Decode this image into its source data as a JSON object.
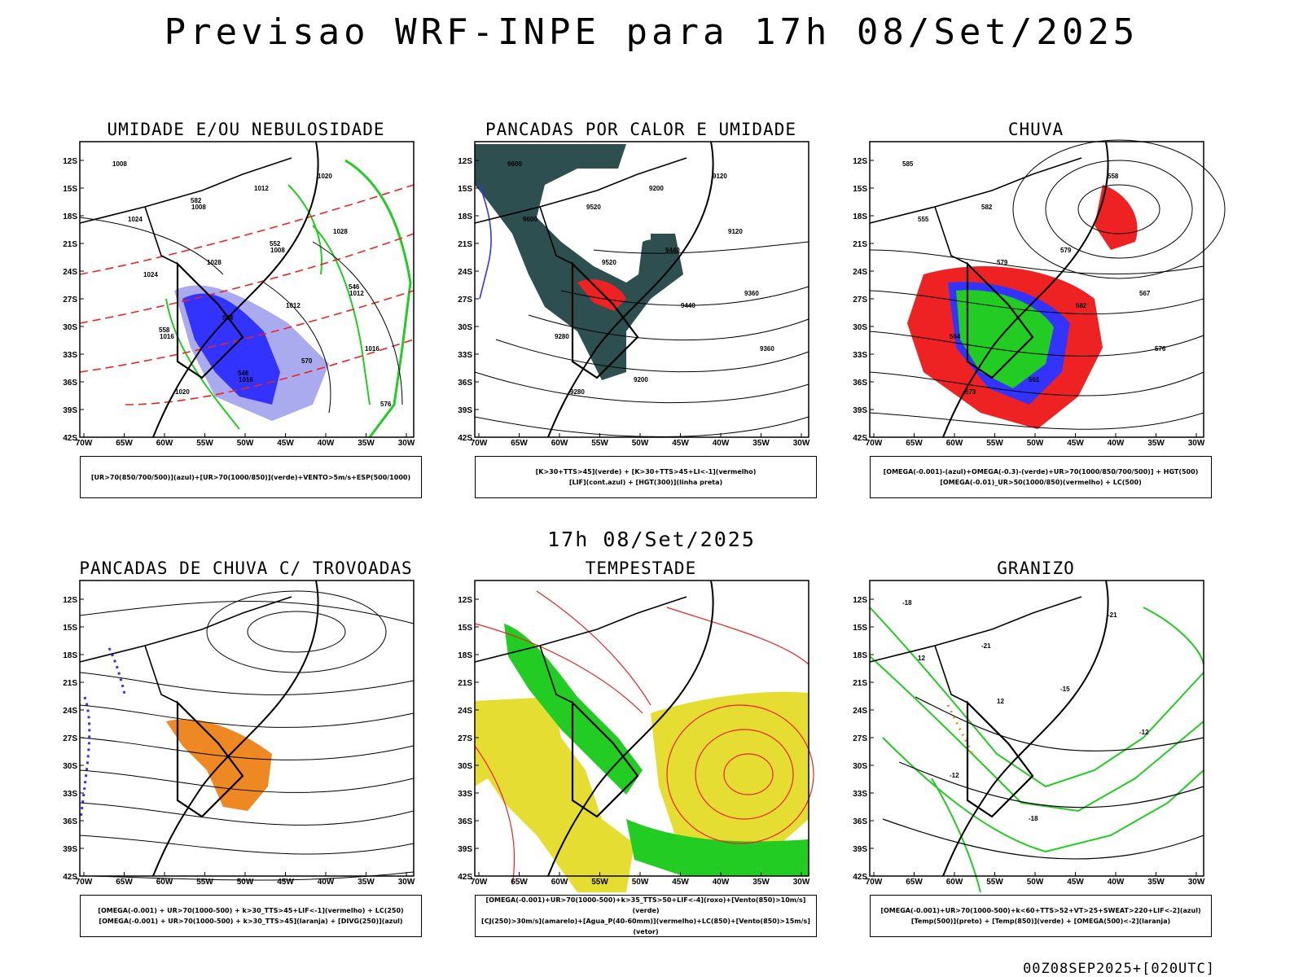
{
  "header": {
    "title": "Previsao WRF-INPE  para 17h 08/Set/2025"
  },
  "middle": {
    "title": "17h 08/Set/2025"
  },
  "footer": {
    "run": "00Z08SEP2025+[020UTC]"
  },
  "axes": {
    "xlabels": [
      "70W",
      "65W",
      "60W",
      "55W",
      "50W",
      "45W",
      "40W",
      "35W",
      "30W"
    ],
    "ylabels": [
      "12S",
      "15S",
      "18S",
      "21S",
      "24S",
      "27S",
      "30S",
      "33S",
      "36S",
      "39S",
      "42S"
    ]
  },
  "colors": {
    "blue": "#3333ff",
    "lightblue": "#aaaaee",
    "green": "#22cc22",
    "red": "#ee2222",
    "orange": "#ee8822",
    "yellow": "#e6dd33",
    "darkteal": "#2d4f4f"
  },
  "chart_data": [
    {
      "type": "map",
      "title": "UMIDADE E/OU NEBULOSIDADE",
      "xlim": [
        "70W",
        "28W"
      ],
      "ylim": [
        "42S",
        "10S"
      ],
      "legend": [
        "[UR>70(850/700/500)](azul)+[UR>70(1000/850)](verde)+VENTO>5m/s+ESP(500/1000)"
      ],
      "contour_labels": [
        "1008",
        "1008",
        "1008",
        "1012",
        "1016",
        "1016",
        "1020",
        "1024",
        "1028",
        "1012",
        "1016",
        "1020",
        "1012",
        "1028",
        "1024",
        "564",
        "570",
        "576",
        "582",
        "552",
        "546",
        "558",
        "546"
      ]
    },
    {
      "type": "map",
      "title": "PANCADAS POR CALOR E UMIDADE",
      "xlim": [
        "70W",
        "28W"
      ],
      "ylim": [
        "42S",
        "10S"
      ],
      "legend": [
        "[K>30+TTS>45](verde) + [K>30+TTS>45+LI<-1](vermelho)",
        "[LIF](cont.azul) + [HGT(300)](linha preta)"
      ],
      "contour_labels": [
        "9600",
        "9520",
        "9440",
        "9360",
        "9280",
        "9200",
        "9120",
        "9600",
        "9520",
        "9440",
        "9360",
        "9280",
        "9200",
        "9120"
      ]
    },
    {
      "type": "map",
      "title": "CHUVA",
      "xlim": [
        "70W",
        "28W"
      ],
      "ylim": [
        "42S",
        "10S"
      ],
      "legend": [
        "[OMEGA(-0.001)-(azul)+OMEGA(-0.3)-(verde)+UR>70(1000/850/700/500)] + HGT(500)",
        "[OMEGA(-0.01)_UR>50(1000/850)(vermelho) + LC(500)"
      ],
      "contour_labels": [
        "585",
        "582",
        "579",
        "567",
        "564",
        "561",
        "558",
        "555",
        "579",
        "582",
        "576",
        "573"
      ]
    },
    {
      "type": "map",
      "title": "PANCADAS DE CHUVA C/ TROVOADAS",
      "xlim": [
        "70W",
        "28W"
      ],
      "ylim": [
        "42S",
        "10S"
      ],
      "legend": [
        "[OMEGA(-0.001) + UR>70(1000-500) + k>30_TTS>45+LIF<-1](vermelho) + LC(250)",
        "[OMEGA(-0.001) + UR>70(1000-500) + k>30_TTS>45](laranja) + [DIVG(250)](azul)"
      ],
      "contour_labels": []
    },
    {
      "type": "map",
      "title": "TEMPESTADE",
      "xlim": [
        "70W",
        "28W"
      ],
      "ylim": [
        "42S",
        "10S"
      ],
      "legend": [
        "[OMEGA(-0.001)+UR>70(1000-500)+k>35_TTS>50+LIF<-4](roxo)+[Vento(850)>10m/s](verde)",
        "[CJ(250)>30m/s](amarelo)+[Agua_P(40-60mm)](vermelho)+LC(850)+[Vento(850)>15m/s](vetor)"
      ],
      "contour_labels": []
    },
    {
      "type": "map",
      "title": "GRANIZO",
      "xlim": [
        "70W",
        "28W"
      ],
      "ylim": [
        "42S",
        "10S"
      ],
      "legend": [
        "[OMEGA(-0.001)+UR>70(1000-500)+k<60+TTS>52+VT>25+SWEAT>220+LIF<-2](azul)",
        "[Temp(500)](preto) + [Temp(850)](verde) + [OMEGA(500)<-2](laranja)"
      ],
      "contour_labels": [
        "-18",
        "-21",
        "-15",
        "-12",
        "-12",
        "-18",
        "-21",
        "12",
        "12"
      ]
    }
  ]
}
